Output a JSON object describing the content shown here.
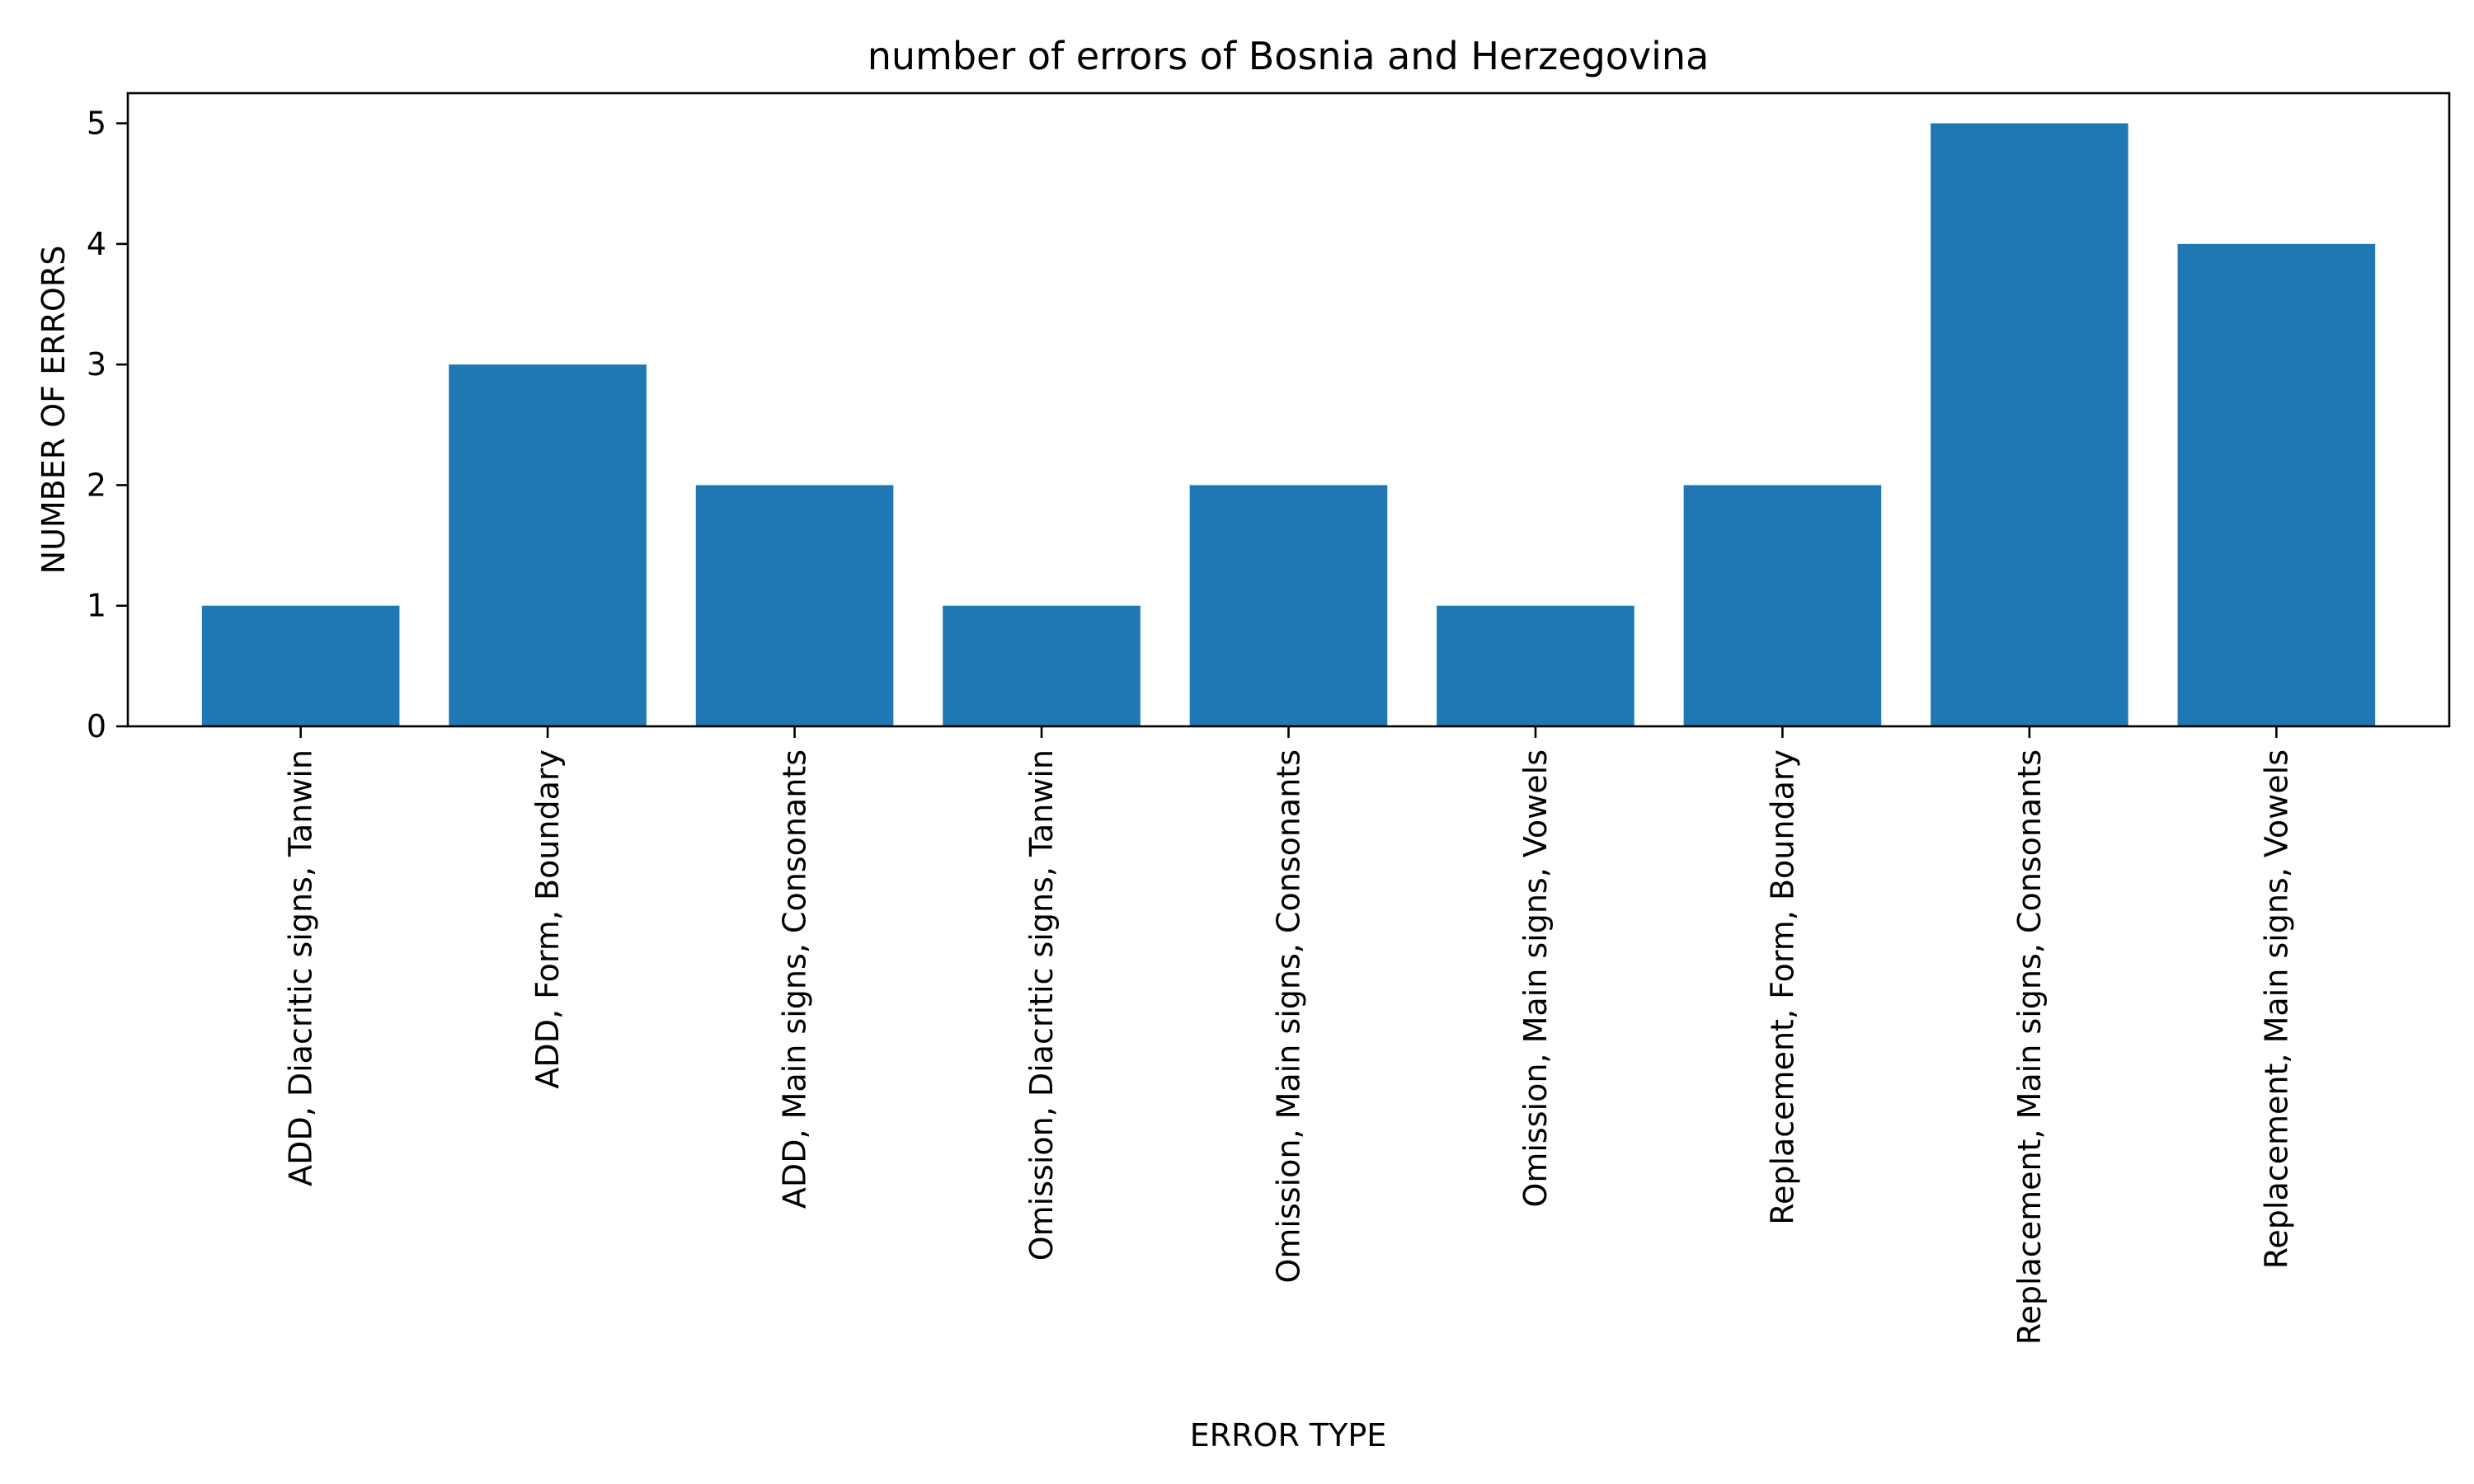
{
  "chart_data": {
    "type": "bar",
    "title": "number of errors of Bosnia and Herzegovina",
    "xlabel": "ERROR TYPE",
    "ylabel": "NUMBER OF ERRORS",
    "categories": [
      "ADD, Diacritic signs, Tanwin",
      "ADD, Form, Boundary",
      "ADD, Main signs, Consonants",
      "Omission, Diacritic signs, Tanwin",
      "Omission, Main signs, Consonants",
      "Omission, Main signs, Vowels",
      "Replacement, Form, Boundary",
      "Replacement, Main signs, Consonants",
      "Replacement, Main signs, Vowels"
    ],
    "values": [
      1,
      3,
      2,
      1,
      2,
      1,
      2,
      5,
      4
    ],
    "ylim": [
      0,
      5.25
    ],
    "yticks": [
      0,
      1,
      2,
      3,
      4,
      5
    ],
    "grid": false,
    "bar_color": "#1f77b4"
  }
}
